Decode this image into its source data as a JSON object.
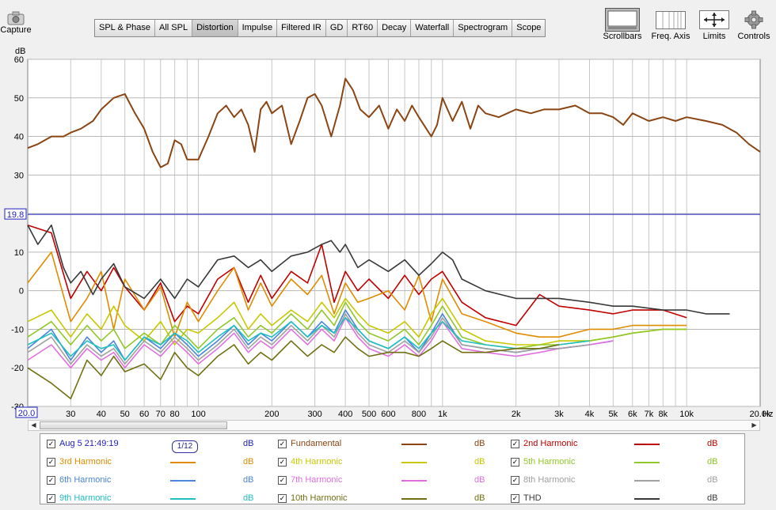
{
  "toolbar": {
    "capture_label": "Capture",
    "scrollbars_label": "Scrollbars",
    "freq_axis_label": "Freq. Axis",
    "limits_label": "Limits",
    "controls_label": "Controls"
  },
  "tabs": [
    {
      "label": "SPL & Phase",
      "active": false
    },
    {
      "label": "All SPL",
      "active": false
    },
    {
      "label": "Distortion",
      "active": true
    },
    {
      "label": "Impulse",
      "active": false
    },
    {
      "label": "Filtered IR",
      "active": false
    },
    {
      "label": "GD",
      "active": false
    },
    {
      "label": "RT60",
      "active": false
    },
    {
      "label": "Decay",
      "active": false
    },
    {
      "label": "Waterfall",
      "active": false
    },
    {
      "label": "Spectrogram",
      "active": false
    },
    {
      "label": "Scope",
      "active": false
    }
  ],
  "chart_data": {
    "type": "line",
    "ylabel": "dB",
    "xlabel": "Hz",
    "xscale": "log",
    "xlim": [
      20,
      20000
    ],
    "ylim": [
      -30,
      60
    ],
    "y_ticks": [
      -30,
      -20,
      -10,
      0,
      10,
      20,
      30,
      40,
      50,
      60
    ],
    "x_ticks": [
      {
        "value": 20,
        "label": "20.0"
      },
      {
        "value": 30,
        "label": "30"
      },
      {
        "value": 40,
        "label": "40"
      },
      {
        "value": 50,
        "label": "50"
      },
      {
        "value": 60,
        "label": "60"
      },
      {
        "value": 70,
        "label": "70"
      },
      {
        "value": 80,
        "label": "80"
      },
      {
        "value": 100,
        "label": "100"
      },
      {
        "value": 200,
        "label": "200"
      },
      {
        "value": 300,
        "label": "300"
      },
      {
        "value": 400,
        "label": "400"
      },
      {
        "value": 500,
        "label": "500"
      },
      {
        "value": 600,
        "label": "600"
      },
      {
        "value": 800,
        "label": "800"
      },
      {
        "value": 1000,
        "label": "1k"
      },
      {
        "value": 2000,
        "label": "2k"
      },
      {
        "value": 3000,
        "label": "3k"
      },
      {
        "value": 4000,
        "label": "4k"
      },
      {
        "value": 5000,
        "label": "5k"
      },
      {
        "value": 6000,
        "label": "6k"
      },
      {
        "value": 7000,
        "label": "7k"
      },
      {
        "value": 8000,
        "label": "8k"
      },
      {
        "value": 10000,
        "label": "10k"
      },
      {
        "value": 20000,
        "label": "20.0k"
      }
    ],
    "cursor_level": {
      "value": 19.8,
      "label": "19.8"
    },
    "grid": true,
    "series": [
      {
        "name": "Fundamental",
        "color": "#8b4513",
        "x": [
          20,
          22,
          25,
          28,
          30,
          33,
          37,
          40,
          45,
          50,
          55,
          60,
          65,
          70,
          75,
          80,
          85,
          90,
          100,
          110,
          120,
          130,
          140,
          150,
          160,
          170,
          180,
          190,
          200,
          220,
          240,
          260,
          280,
          300,
          320,
          350,
          380,
          400,
          430,
          460,
          500,
          550,
          600,
          650,
          700,
          750,
          800,
          900,
          950,
          1000,
          1100,
          1200,
          1300,
          1400,
          1500,
          1700,
          2000,
          2300,
          2600,
          3000,
          3500,
          4000,
          4500,
          5000,
          5500,
          6000,
          7000,
          8000,
          9000,
          10000,
          12000,
          14000,
          16000,
          18000,
          20000
        ],
        "y": [
          37,
          38,
          40,
          40,
          41,
          42,
          44,
          47,
          50,
          51,
          46,
          42,
          36,
          32,
          33,
          39,
          38,
          34,
          34,
          40,
          46,
          48,
          45,
          47,
          43,
          36,
          47,
          49,
          46,
          48,
          38,
          44,
          50,
          51,
          48,
          40,
          48,
          55,
          52,
          47,
          45,
          48,
          42,
          47,
          44,
          48,
          45,
          40,
          43,
          50,
          44,
          49,
          42,
          48,
          46,
          45,
          47,
          46,
          47,
          47,
          48,
          46,
          46,
          45,
          43,
          46,
          44,
          45,
          44,
          45,
          44,
          43,
          41,
          38,
          36
        ]
      },
      {
        "name": "2nd Harmonic",
        "color": "#c00000",
        "x": [
          20,
          25,
          30,
          35,
          40,
          45,
          50,
          60,
          70,
          80,
          90,
          100,
          120,
          140,
          160,
          180,
          200,
          240,
          280,
          320,
          360,
          400,
          450,
          500,
          600,
          700,
          800,
          900,
          1000,
          1200,
          1500,
          2000,
          2500,
          3000,
          4000,
          5000,
          6000,
          8000,
          10000
        ],
        "y": [
          17,
          15,
          -2,
          5,
          0,
          6,
          1,
          -5,
          2,
          -8,
          -4,
          -6,
          3,
          6,
          -3,
          4,
          -2,
          5,
          2,
          12,
          -3,
          5,
          0,
          3,
          -2,
          4,
          -1,
          3,
          5,
          -3,
          -7,
          -9,
          -1,
          -4,
          -5,
          -6,
          -5,
          -5,
          -7
        ]
      },
      {
        "name": "3rd Harmonic",
        "color": "#e08c00",
        "x": [
          20,
          25,
          30,
          35,
          40,
          45,
          50,
          60,
          70,
          80,
          90,
          100,
          120,
          140,
          160,
          180,
          200,
          240,
          280,
          320,
          360,
          400,
          450,
          500,
          600,
          700,
          800,
          900,
          1000,
          1200,
          1500,
          2000,
          2500,
          3000,
          4000,
          5000,
          6000,
          8000,
          10000
        ],
        "y": [
          2,
          10,
          -8,
          -2,
          5,
          -10,
          3,
          -5,
          1,
          -12,
          -3,
          -8,
          0,
          6,
          -5,
          2,
          -4,
          3,
          -1,
          4,
          -6,
          2,
          -3,
          -2,
          0,
          -5,
          4,
          -8,
          3,
          -6,
          -8,
          -11,
          -12,
          -12,
          -10,
          -10,
          -9,
          -9,
          -9
        ]
      },
      {
        "name": "4th Harmonic",
        "color": "#c8c800",
        "x": [
          20,
          25,
          30,
          35,
          40,
          45,
          50,
          60,
          70,
          80,
          90,
          100,
          120,
          140,
          160,
          180,
          200,
          240,
          280,
          320,
          360,
          400,
          450,
          500,
          600,
          700,
          800,
          900,
          1000,
          1200,
          1500,
          2000,
          2500,
          3000,
          4000,
          5000,
          6000,
          8000,
          10000
        ],
        "y": [
          -8,
          -5,
          -12,
          -6,
          -10,
          -4,
          -9,
          -13,
          -8,
          -14,
          -10,
          -11,
          -7,
          -3,
          -10,
          -6,
          -9,
          -5,
          -8,
          -3,
          -7,
          -2,
          -6,
          -9,
          -11,
          -8,
          -12,
          -6,
          -2,
          -10,
          -13,
          -14,
          -14,
          -13,
          -13,
          -12,
          -11,
          -10,
          -10
        ]
      },
      {
        "name": "5th Harmonic",
        "color": "#90c828",
        "x": [
          20,
          25,
          30,
          35,
          40,
          45,
          50,
          60,
          70,
          80,
          90,
          100,
          120,
          140,
          160,
          180,
          200,
          240,
          280,
          320,
          360,
          400,
          450,
          500,
          600,
          700,
          800,
          900,
          1000,
          1200,
          1500,
          2000,
          2500,
          3000,
          4000,
          5000,
          6000,
          8000,
          10000
        ],
        "y": [
          -12,
          -8,
          -14,
          -9,
          -13,
          -10,
          -15,
          -11,
          -14,
          -9,
          -12,
          -15,
          -10,
          -7,
          -12,
          -9,
          -11,
          -6,
          -10,
          -5,
          -9,
          -3,
          -8,
          -11,
          -13,
          -10,
          -14,
          -9,
          -4,
          -12,
          -14,
          -15,
          -14,
          -14,
          -13,
          -12,
          -11,
          -10,
          -10
        ]
      },
      {
        "name": "6th Harmonic",
        "color": "#4a86d8",
        "x": [
          20,
          25,
          30,
          35,
          40,
          45,
          50,
          60,
          70,
          80,
          90,
          100,
          120,
          140,
          160,
          180,
          200,
          240,
          280,
          320,
          360,
          400,
          450,
          500,
          600,
          700,
          800,
          900,
          1000,
          1200,
          1500,
          2000,
          2500,
          3000,
          4000,
          5000
        ],
        "y": [
          -15,
          -10,
          -18,
          -12,
          -16,
          -13,
          -18,
          -12,
          -15,
          -11,
          -14,
          -17,
          -13,
          -9,
          -14,
          -11,
          -13,
          -8,
          -12,
          -8,
          -11,
          -5,
          -10,
          -13,
          -15,
          -12,
          -16,
          -11,
          -6,
          -14,
          -15,
          -16,
          -15,
          -15,
          -14,
          -13
        ]
      },
      {
        "name": "7th Harmonic",
        "color": "#e070e0",
        "x": [
          20,
          25,
          30,
          35,
          40,
          45,
          50,
          60,
          70,
          80,
          90,
          100,
          120,
          140,
          160,
          180,
          200,
          240,
          280,
          320,
          360,
          400,
          450,
          500,
          600,
          700,
          800,
          900,
          1000,
          1200,
          1500,
          2000,
          2500,
          3000,
          4000,
          5000
        ],
        "y": [
          -18,
          -14,
          -20,
          -15,
          -18,
          -16,
          -20,
          -14,
          -17,
          -13,
          -16,
          -19,
          -15,
          -11,
          -16,
          -13,
          -15,
          -10,
          -14,
          -10,
          -13,
          -7,
          -12,
          -15,
          -17,
          -14,
          -17,
          -13,
          -8,
          -15,
          -16,
          -17,
          -16,
          -15,
          -14,
          -13
        ]
      },
      {
        "name": "8th Harmonic",
        "color": "#a0a0a0",
        "x": [
          20,
          25,
          30,
          35,
          40,
          45,
          50,
          60,
          70,
          80,
          90,
          100,
          120,
          140,
          160,
          180,
          200,
          240,
          280,
          320,
          360,
          400,
          450,
          500,
          600,
          700,
          800,
          900,
          1000,
          1200,
          1500,
          2000,
          2500,
          3000,
          4000
        ],
        "y": [
          -16,
          -12,
          -19,
          -14,
          -17,
          -15,
          -19,
          -13,
          -16,
          -12,
          -15,
          -18,
          -14,
          -10,
          -15,
          -12,
          -14,
          -9,
          -13,
          -9,
          -12,
          -6,
          -11,
          -14,
          -16,
          -13,
          -16,
          -12,
          -7,
          -14,
          -15,
          -16,
          -15,
          -15,
          -14
        ]
      },
      {
        "name": "9th Harmonic",
        "color": "#20c0c0",
        "x": [
          20,
          25,
          30,
          35,
          40,
          45,
          50,
          60,
          70,
          80,
          90,
          100,
          120,
          140,
          160,
          180,
          200,
          240,
          280,
          320,
          360,
          400,
          450,
          500,
          600,
          700,
          800,
          900,
          1000,
          1200,
          1500,
          2000,
          2500,
          3000,
          4000
        ],
        "y": [
          -14,
          -11,
          -17,
          -13,
          -15,
          -14,
          -18,
          -12,
          -14,
          -11,
          -13,
          -16,
          -12,
          -9,
          -13,
          -11,
          -12,
          -8,
          -12,
          -9,
          -11,
          -7,
          -10,
          -13,
          -15,
          -12,
          -15,
          -11,
          -8,
          -13,
          -14,
          -15,
          -15,
          -14,
          -13
        ]
      },
      {
        "name": "10th Harmonic",
        "color": "#707010",
        "x": [
          20,
          25,
          30,
          35,
          40,
          45,
          50,
          60,
          70,
          80,
          90,
          100,
          120,
          140,
          160,
          180,
          200,
          240,
          280,
          320,
          360,
          400,
          450,
          500,
          600,
          700,
          800,
          900,
          1000,
          1200,
          1500,
          2000,
          2500,
          3000
        ],
        "y": [
          -20,
          -24,
          -28,
          -18,
          -22,
          -17,
          -21,
          -19,
          -23,
          -16,
          -20,
          -22,
          -17,
          -14,
          -19,
          -16,
          -18,
          -13,
          -17,
          -14,
          -16,
          -12,
          -15,
          -17,
          -16,
          -16,
          -17,
          -15,
          -13,
          -16,
          -16,
          -15,
          -15,
          -14
        ]
      },
      {
        "name": "THD",
        "color": "#383838",
        "x": [
          20,
          22,
          25,
          28,
          30,
          33,
          37,
          40,
          45,
          50,
          60,
          70,
          80,
          90,
          100,
          120,
          140,
          160,
          180,
          200,
          240,
          280,
          320,
          350,
          380,
          400,
          450,
          500,
          600,
          700,
          800,
          900,
          1000,
          1100,
          1200,
          1500,
          2000,
          2500,
          3000,
          4000,
          5000,
          6000,
          8000,
          10000,
          12000,
          15000
        ],
        "y": [
          17,
          12,
          17,
          6,
          2,
          5,
          -1,
          3,
          7,
          1,
          -2,
          3,
          -2,
          3,
          1,
          8,
          9,
          6,
          8,
          5,
          9,
          10,
          12,
          13,
          10,
          12,
          6,
          8,
          5,
          8,
          4,
          7,
          10,
          8,
          3,
          0,
          -2,
          -2,
          -2,
          -3,
          -4,
          -4,
          -5,
          -5,
          -6,
          -6
        ]
      }
    ]
  },
  "scrollbar": {
    "left_arrow": "◀",
    "right_arrow": "▶"
  },
  "legend": [
    {
      "label": "Aug 5 21:49:19",
      "unit": "dB",
      "color": "#2020c0",
      "swatch": false,
      "smoothing": "1/12",
      "col": 0,
      "row": 0
    },
    {
      "label": "Fundamental",
      "unit": "dB",
      "color": "#8b4513",
      "swatch": true,
      "col": 1,
      "row": 0
    },
    {
      "label": "2nd Harmonic",
      "unit": "dB",
      "color": "#c00000",
      "swatch": true,
      "col": 2,
      "row": 0
    },
    {
      "label": "3rd Harmonic",
      "unit": "dB",
      "color": "#e08c00",
      "swatch": true,
      "col": 0,
      "row": 1
    },
    {
      "label": "4th Harmonic",
      "unit": "dB",
      "color": "#c8c800",
      "swatch": true,
      "col": 1,
      "row": 1
    },
    {
      "label": "5th Harmonic",
      "unit": "dB",
      "color": "#90c828",
      "swatch": true,
      "col": 2,
      "row": 1
    },
    {
      "label": "6th Harmonic",
      "unit": "dB",
      "color": "#4a86d8",
      "swatch": true,
      "col": 0,
      "row": 2
    },
    {
      "label": "7th Harmonic",
      "unit": "dB",
      "color": "#e070e0",
      "swatch": true,
      "col": 1,
      "row": 2
    },
    {
      "label": "8th Harmonic",
      "unit": "dB",
      "color": "#a0a0a0",
      "swatch": true,
      "col": 2,
      "row": 2
    },
    {
      "label": "9th Harmonic",
      "unit": "dB",
      "color": "#20c0c0",
      "swatch": true,
      "col": 0,
      "row": 3
    },
    {
      "label": "10th Harmonic",
      "unit": "dB",
      "color": "#707010",
      "swatch": true,
      "col": 1,
      "row": 3
    },
    {
      "label": "THD",
      "unit": "dB",
      "color": "#383838",
      "swatch": true,
      "col": 2,
      "row": 3
    }
  ]
}
